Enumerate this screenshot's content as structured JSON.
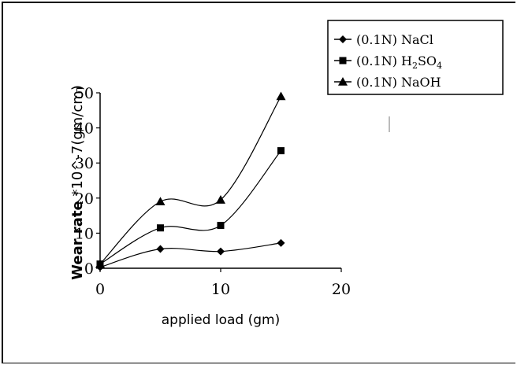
{
  "chart_data": {
    "type": "line",
    "title": "",
    "xlabel": "applied load (gm)",
    "ylabel": {
      "bold": "Wear rate",
      "rest": " *10^-7(gm/cm)"
    },
    "xlim": [
      0,
      20
    ],
    "ylim": [
      0,
      50
    ],
    "xticks": [
      "0",
      "10",
      "20"
    ],
    "yticks": [
      "0",
      "10",
      "20",
      "30",
      "40",
      "50"
    ],
    "x": [
      0,
      5,
      10,
      15
    ],
    "legend_position": "top-right",
    "series": [
      {
        "name": "(0.1N) NaCl",
        "marker": "diamond",
        "values": [
          0.3,
          5.5,
          4.8,
          7.2
        ]
      },
      {
        "name": "(0.1N) H2SO4",
        "name_parts": [
          "(0.1N) H",
          "2",
          "SO",
          "4"
        ],
        "marker": "square",
        "values": [
          1.2,
          11.5,
          12.2,
          33.5
        ]
      },
      {
        "name": "(0.1N) NaOH",
        "marker": "triangle",
        "values": [
          1.2,
          19,
          19.5,
          49
        ]
      }
    ],
    "grid": false,
    "line_color": "#000000"
  }
}
